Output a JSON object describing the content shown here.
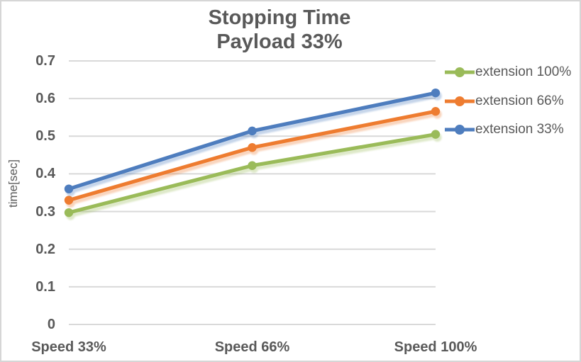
{
  "title": {
    "line1": "Stopping Time",
    "line2": "Payload 33%"
  },
  "colors": {
    "text": "#595959",
    "grid": "#D9D9D9",
    "border": "#D6D6D6",
    "background": "#FFFFFF",
    "series_green": "#9ABB59",
    "series_orange": "#EE7C30",
    "series_blue": "#4E7DBE"
  },
  "chart_data": {
    "type": "line",
    "title": "Stopping Time",
    "subtitle": "Payload 33%",
    "categories": [
      "Speed 33%",
      "Speed 66%",
      "Speed 100%"
    ],
    "series": [
      {
        "name": "extension 100%",
        "color": "#9ABB59",
        "values": [
          0.297,
          0.422,
          0.505
        ]
      },
      {
        "name": "extension 66%",
        "color": "#EE7C30",
        "values": [
          0.33,
          0.47,
          0.566
        ]
      },
      {
        "name": "extension 33%",
        "color": "#4E7DBE",
        "values": [
          0.36,
          0.514,
          0.615
        ]
      }
    ],
    "xlabel": "",
    "ylabel": "time[sec]",
    "ylim": [
      0,
      0.7
    ],
    "ytick_interval": 0.1,
    "yticks": [
      "0",
      "0.1",
      "0.2",
      "0.3",
      "0.4",
      "0.5",
      "0.6",
      "0.7"
    ],
    "grid": true,
    "legend_position": "right",
    "marker": "circle",
    "line_shadow": true
  }
}
